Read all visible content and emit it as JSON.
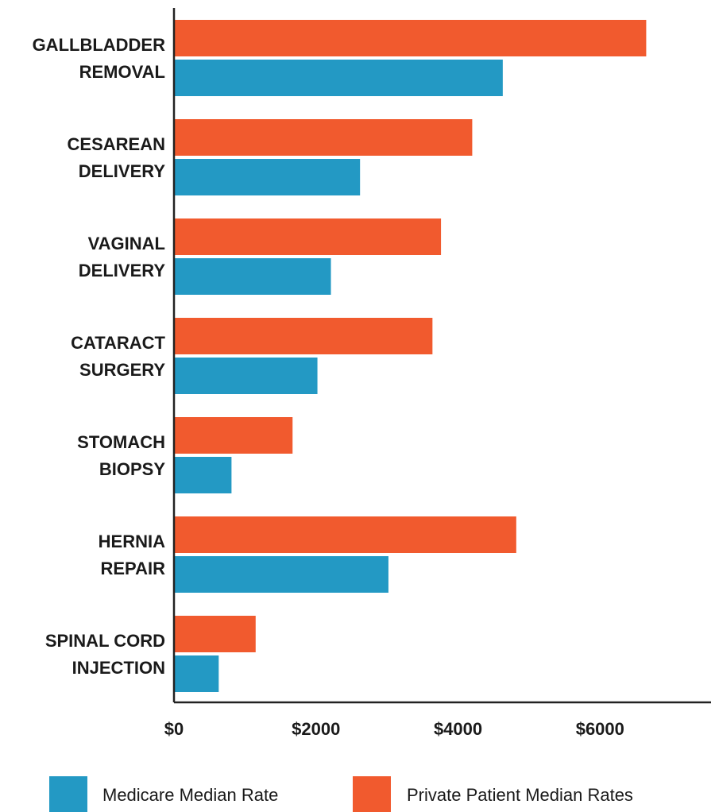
{
  "colors": {
    "medicare": "#2399c4",
    "private": "#f15a2e",
    "axis": "#222222",
    "text": "#1a1a1a"
  },
  "chart_data": {
    "type": "bar",
    "orientation": "horizontal",
    "categories": [
      [
        "GALLBLADDER",
        "REMOVAL"
      ],
      [
        "CESAREAN",
        "DELIVERY"
      ],
      [
        "VAGINAL",
        "DELIVERY"
      ],
      [
        "CATARACT",
        "SURGERY"
      ],
      [
        "STOMACH",
        "BIOPSY"
      ],
      [
        "HERNIA",
        "REPAIR"
      ],
      [
        "SPINAL CORD",
        "INJECTION"
      ]
    ],
    "series": [
      {
        "name": "Private Patient Median Rates",
        "color": "#f15a2e",
        "values": [
          6650,
          4200,
          3760,
          3640,
          1670,
          4820,
          1150
        ]
      },
      {
        "name": "Medicare Median Rate",
        "color": "#2399c4",
        "values": [
          4630,
          2620,
          2210,
          2020,
          810,
          3020,
          630
        ]
      }
    ],
    "x_ticks": [
      0,
      2000,
      4000,
      6000
    ],
    "x_tick_labels": [
      "$0",
      "$2000",
      "$4000",
      "$6000"
    ],
    "xlim": [
      0,
      7500
    ],
    "grid": false,
    "legend_position": "bottom",
    "legend": [
      {
        "label": "Medicare Median Rate",
        "color": "#2399c4"
      },
      {
        "label": "Private Patient Median Rates",
        "color": "#f15a2e"
      }
    ]
  }
}
